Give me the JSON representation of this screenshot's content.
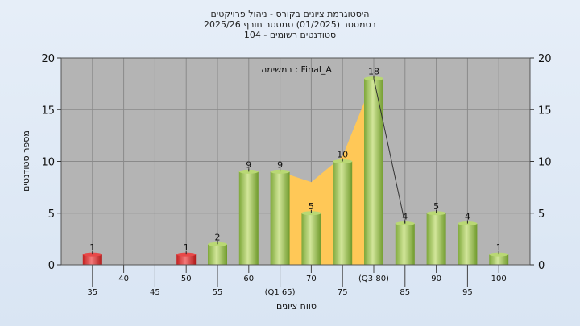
{
  "chart_data": {
    "type": "bar",
    "title_lines": [
      "היסטוגרמת ציונים בקורס - ניהול פרויקטים",
      "בסמסטר  (01/2025)  סמסטר חורף 2025/26",
      "סטודנטים רשומים - 104"
    ],
    "annotation": "במשימה : Final_A",
    "xlabel": "טווח ציונים",
    "ylabel": "מספר סטודנטים",
    "ylim": [
      0,
      20
    ],
    "yticks": [
      0,
      5,
      10,
      15,
      20
    ],
    "grid": true,
    "x_tick_labels": [
      {
        "x": 35,
        "text": "35",
        "row": 2
      },
      {
        "x": 40,
        "text": "40",
        "row": 1
      },
      {
        "x": 45,
        "text": "45",
        "row": 2
      },
      {
        "x": 50,
        "text": "50",
        "row": 1
      },
      {
        "x": 55,
        "text": "55",
        "row": 2
      },
      {
        "x": 60,
        "text": "60",
        "row": 1
      },
      {
        "x": 65,
        "text": "(Q1 65)",
        "row": 2
      },
      {
        "x": 70,
        "text": "70",
        "row": 1
      },
      {
        "x": 75,
        "text": "75",
        "row": 2
      },
      {
        "x": 80,
        "text": "(Q3 80)",
        "row": 1
      },
      {
        "x": 85,
        "text": "85",
        "row": 2
      },
      {
        "x": 90,
        "text": "90",
        "row": 1
      },
      {
        "x": 95,
        "text": "95",
        "row": 2
      },
      {
        "x": 100,
        "text": "100",
        "row": 1
      }
    ],
    "bars": [
      {
        "x": 35,
        "value": 1,
        "color": "red"
      },
      {
        "x": 50,
        "value": 1,
        "color": "red"
      },
      {
        "x": 55,
        "value": 2,
        "color": "green"
      },
      {
        "x": 60,
        "value": 9,
        "color": "green"
      },
      {
        "x": 65,
        "value": 9,
        "color": "green"
      },
      {
        "x": 70,
        "value": 5,
        "color": "green"
      },
      {
        "x": 75,
        "value": 10,
        "color": "green"
      },
      {
        "x": 80,
        "value": 18,
        "color": "green"
      },
      {
        "x": 85,
        "value": 4,
        "color": "green"
      },
      {
        "x": 90,
        "value": 5,
        "color": "green"
      },
      {
        "x": 95,
        "value": 4,
        "color": "green"
      },
      {
        "x": 100,
        "value": 1,
        "color": "green"
      }
    ],
    "iqr_area": [
      {
        "x": 65,
        "y": 9
      },
      {
        "x": 70,
        "y": 8
      },
      {
        "x": 75,
        "y": 10.5
      },
      {
        "x": 80,
        "y": 18
      }
    ],
    "q3_line": [
      {
        "x": 80,
        "y": 18
      },
      {
        "x": 85,
        "y": 4
      }
    ],
    "colors": {
      "plot_bg": "#b4b4b4",
      "grid": "#8a8a8a",
      "iqr_fill": "#ffc857",
      "bar_green_light": "#c9e08a",
      "bar_green_dark": "#6f9a2c",
      "bar_red_light": "#f06a6a",
      "bar_red_dark": "#b01818"
    }
  }
}
